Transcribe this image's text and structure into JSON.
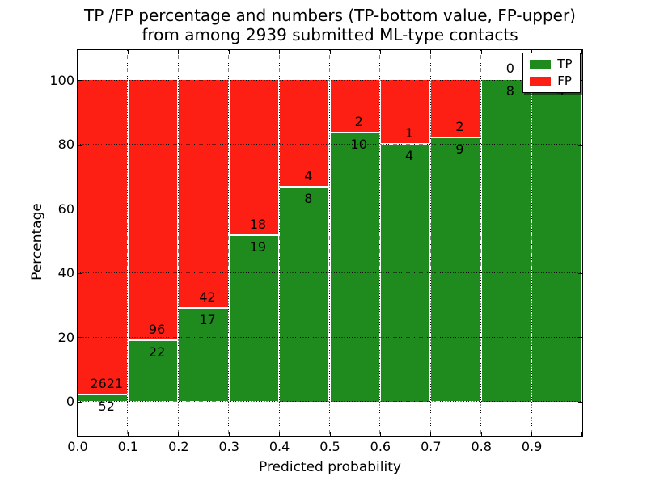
{
  "chart_data": {
    "type": "bar",
    "stacked": true,
    "orientation": "vertical",
    "title_line1": "TP /FP percentage and numbers (TP-bottom value, FP-upper)",
    "title_line2": "from among 2939 submitted ML-type contacts",
    "xlabel": "Predicted probability",
    "ylabel": "Percentage",
    "total_contacts": 2939,
    "bins": [
      0.0,
      0.1,
      0.2,
      0.3,
      0.4,
      0.5,
      0.6,
      0.7,
      0.8,
      0.9
    ],
    "bin_width": 0.1,
    "x_tick_labels": [
      "0.0",
      "0.1",
      "0.2",
      "0.3",
      "0.4",
      "0.5",
      "0.6",
      "0.7",
      "0.8",
      "0.9"
    ],
    "y_ticks": [
      0,
      20,
      40,
      60,
      80,
      100
    ],
    "y_tick_labels": [
      "0",
      "20",
      "40",
      "60",
      "80",
      "100"
    ],
    "xlim": [
      0.0,
      1.0
    ],
    "ylim": [
      -10.8,
      109.4
    ],
    "grid": {
      "style": "dotted",
      "color": "#000000",
      "above_bars": true
    },
    "series": [
      {
        "name": "TP",
        "color": "#1f8b1f",
        "position": "bottom",
        "counts": [
          52,
          22,
          17,
          19,
          8,
          10,
          4,
          9,
          8,
          4
        ]
      },
      {
        "name": "FP",
        "color": "#fe1f14",
        "position": "top",
        "counts": [
          2621,
          96,
          42,
          18,
          4,
          2,
          1,
          2,
          0,
          0
        ]
      }
    ],
    "tp_percentages": [
      1.95,
      18.64,
      28.81,
      51.35,
      66.67,
      83.33,
      80.0,
      81.82,
      100.0,
      100.0
    ],
    "legend": {
      "position": "upper-right",
      "items": [
        "TP",
        "FP"
      ]
    },
    "bar_edge_color": "#ffffff",
    "background": "#ffffff"
  }
}
